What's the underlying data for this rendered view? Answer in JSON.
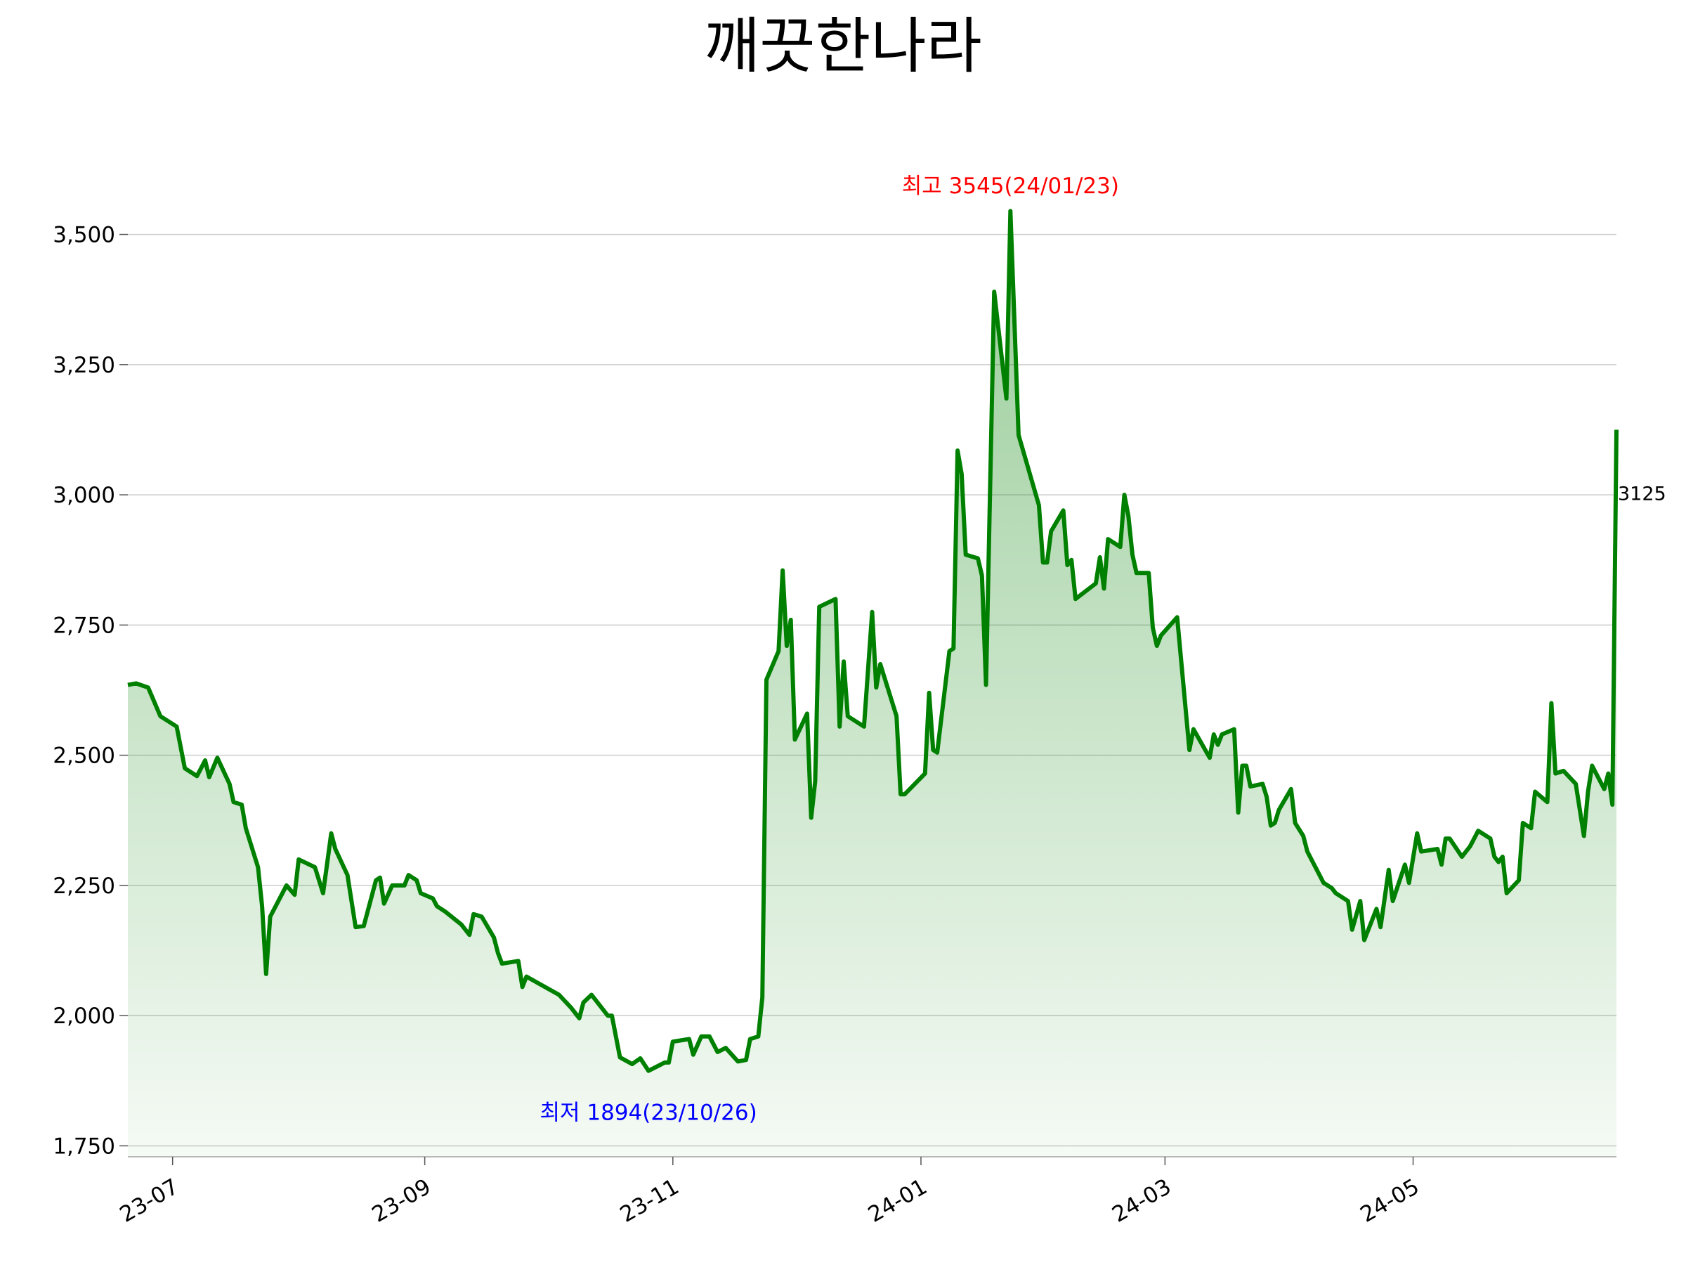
{
  "chart_data": {
    "type": "line",
    "title": "깨끗한나라",
    "x": [
      "2023-06-20",
      "2023-06-22",
      "2023-06-25",
      "2023-06-28",
      "2023-07-02",
      "2023-07-04",
      "2023-07-07",
      "2023-07-09",
      "2023-07-10",
      "2023-07-12",
      "2023-07-15",
      "2023-07-16",
      "2023-07-18",
      "2023-07-19",
      "2023-07-22",
      "2023-07-23",
      "2023-07-24",
      "2023-07-25",
      "2023-07-29",
      "2023-07-31",
      "2023-08-01",
      "2023-08-05",
      "2023-08-07",
      "2023-08-09",
      "2023-08-10",
      "2023-08-13",
      "2023-08-15",
      "2023-08-17",
      "2023-08-20",
      "2023-08-21",
      "2023-08-22",
      "2023-08-24",
      "2023-08-27",
      "2023-08-28",
      "2023-08-30",
      "2023-08-31",
      "2023-09-03",
      "2023-09-04",
      "2023-09-06",
      "2023-09-10",
      "2023-09-12",
      "2023-09-13",
      "2023-09-15",
      "2023-09-18",
      "2023-09-19",
      "2023-09-20",
      "2023-09-24",
      "2023-09-25",
      "2023-09-26",
      "2023-10-04",
      "2023-10-07",
      "2023-10-09",
      "2023-10-10",
      "2023-10-12",
      "2023-10-16",
      "2023-10-17",
      "2023-10-19",
      "2023-10-22",
      "2023-10-24",
      "2023-10-26",
      "2023-10-30",
      "2023-10-31",
      "2023-11-01",
      "2023-11-05",
      "2023-11-06",
      "2023-11-08",
      "2023-11-10",
      "2023-11-12",
      "2023-11-14",
      "2023-11-17",
      "2023-11-19",
      "2023-11-20",
      "2023-11-22",
      "2023-11-23",
      "2023-11-24",
      "2023-11-27",
      "2023-11-28",
      "2023-11-29",
      "2023-11-30",
      "2023-12-01",
      "2023-12-04",
      "2023-12-05",
      "2023-12-06",
      "2023-12-07",
      "2023-12-11",
      "2023-12-12",
      "2023-12-13",
      "2023-12-14",
      "2023-12-18",
      "2023-12-20",
      "2023-12-21",
      "2023-12-22",
      "2023-12-26",
      "2023-12-27",
      "2023-12-28",
      "2024-01-02",
      "2024-01-03",
      "2024-01-04",
      "2024-01-05",
      "2024-01-08",
      "2024-01-09",
      "2024-01-10",
      "2024-01-11",
      "2024-01-12",
      "2024-01-15",
      "2024-01-16",
      "2024-01-17",
      "2024-01-19",
      "2024-01-22",
      "2024-01-23",
      "2024-01-25",
      "2024-01-30",
      "2024-01-31",
      "2024-02-01",
      "2024-02-02",
      "2024-02-05",
      "2024-02-06",
      "2024-02-07",
      "2024-02-08",
      "2024-02-13",
      "2024-02-14",
      "2024-02-15",
      "2024-02-16",
      "2024-02-19",
      "2024-02-20",
      "2024-02-21",
      "2024-02-22",
      "2024-02-23",
      "2024-02-26",
      "2024-02-27",
      "2024-02-28",
      "2024-02-29",
      "2024-03-04",
      "2024-03-07",
      "2024-03-08",
      "2024-03-12",
      "2024-03-13",
      "2024-03-14",
      "2024-03-15",
      "2024-03-18",
      "2024-03-19",
      "2024-03-20",
      "2024-03-21",
      "2024-03-22",
      "2024-03-25",
      "2024-03-26",
      "2024-03-27",
      "2024-03-28",
      "2024-03-29",
      "2024-04-01",
      "2024-04-02",
      "2024-04-04",
      "2024-04-05",
      "2024-04-09",
      "2024-04-11",
      "2024-04-12",
      "2024-04-15",
      "2024-04-16",
      "2024-04-18",
      "2024-04-19",
      "2024-04-22",
      "2024-04-23",
      "2024-04-25",
      "2024-04-26",
      "2024-04-29",
      "2024-04-30",
      "2024-05-02",
      "2024-05-03",
      "2024-05-07",
      "2024-05-08",
      "2024-05-09",
      "2024-05-10",
      "2024-05-13",
      "2024-05-15",
      "2024-05-17",
      "2024-05-20",
      "2024-05-21",
      "2024-05-22",
      "2024-05-23",
      "2024-05-24",
      "2024-05-27",
      "2024-05-28",
      "2024-05-30",
      "2024-05-31",
      "2024-06-03",
      "2024-06-04",
      "2024-06-05",
      "2024-06-07",
      "2024-06-10",
      "2024-06-12",
      "2024-06-13",
      "2024-06-14",
      "2024-06-17",
      "2024-06-18",
      "2024-06-19",
      "2024-06-20"
    ],
    "values": [
      2635,
      2638,
      2630,
      2575,
      2555,
      2475,
      2460,
      2490,
      2458,
      2495,
      2445,
      2410,
      2405,
      2360,
      2285,
      2210,
      2080,
      2190,
      2250,
      2232,
      2300,
      2285,
      2235,
      2350,
      2320,
      2270,
      2170,
      2172,
      2260,
      2265,
      2215,
      2250,
      2250,
      2270,
      2260,
      2235,
      2225,
      2210,
      2200,
      2175,
      2155,
      2195,
      2190,
      2150,
      2120,
      2100,
      2105,
      2055,
      2075,
      2040,
      2015,
      1995,
      2025,
      2040,
      2000,
      2000,
      1920,
      1907,
      1918,
      1894,
      1910,
      1910,
      1950,
      1955,
      1925,
      1960,
      1960,
      1930,
      1938,
      1912,
      1915,
      1955,
      1960,
      2035,
      2645,
      2700,
      2855,
      2710,
      2760,
      2530,
      2580,
      2380,
      2450,
      2785,
      2800,
      2555,
      2680,
      2575,
      2555,
      2775,
      2630,
      2675,
      2575,
      2425,
      2425,
      2465,
      2620,
      2510,
      2505,
      2700,
      2705,
      3085,
      3040,
      2885,
      2878,
      2845,
      2635,
      3390,
      3185,
      3545,
      3115,
      2980,
      2870,
      2870,
      2930,
      2970,
      2865,
      2875,
      2800,
      2830,
      2880,
      2820,
      2915,
      2900,
      3000,
      2960,
      2885,
      2850,
      2850,
      2745,
      2710,
      2730,
      2765,
      2510,
      2550,
      2495,
      2540,
      2520,
      2540,
      2550,
      2390,
      2480,
      2480,
      2440,
      2445,
      2420,
      2365,
      2370,
      2395,
      2435,
      2370,
      2345,
      2315,
      2255,
      2245,
      2235,
      2220,
      2165,
      2220,
      2145,
      2205,
      2170,
      2280,
      2220,
      2290,
      2255,
      2350,
      2315,
      2320,
      2290,
      2340,
      2340,
      2305,
      2325,
      2355,
      2340,
      2305,
      2295,
      2305,
      2235,
      2260,
      2370,
      2360,
      2430,
      2410,
      2600,
      2465,
      2470,
      2445,
      2345,
      2430,
      2480,
      2435,
      2465,
      2405,
      3125
    ],
    "color": "#008000",
    "xlim": [
      "2023-06-20",
      "2024-06-20"
    ],
    "xticks": [
      {
        "value": "2023-07-01",
        "label": "23-07"
      },
      {
        "value": "2023-09-01",
        "label": "23-09"
      },
      {
        "value": "2023-11-01",
        "label": "23-11"
      },
      {
        "value": "2024-01-01",
        "label": "24-01"
      },
      {
        "value": "2024-03-01",
        "label": "24-03"
      },
      {
        "value": "2024-05-01",
        "label": "24-05"
      }
    ],
    "ylim": [
      1729,
      3660
    ],
    "yticks": [
      {
        "value": 1750,
        "label": "1,750"
      },
      {
        "value": 2000,
        "label": "2,000"
      },
      {
        "value": 2250,
        "label": "2,250"
      },
      {
        "value": 2500,
        "label": "2,500"
      },
      {
        "value": 2750,
        "label": "2,750"
      },
      {
        "value": 3000,
        "label": "3,000"
      },
      {
        "value": 3250,
        "label": "3,250"
      },
      {
        "value": 3500,
        "label": "3,500"
      }
    ],
    "grid": true,
    "annotations": [
      {
        "text": "최고 3545(24/01/23)",
        "color": "#ff0000",
        "anchor": "max"
      },
      {
        "text": "최저 1894(23/10/26)",
        "color": "#0000ff",
        "anchor": "min"
      },
      {
        "text": "3125",
        "color": "#000000",
        "anchor": "last"
      }
    ]
  }
}
